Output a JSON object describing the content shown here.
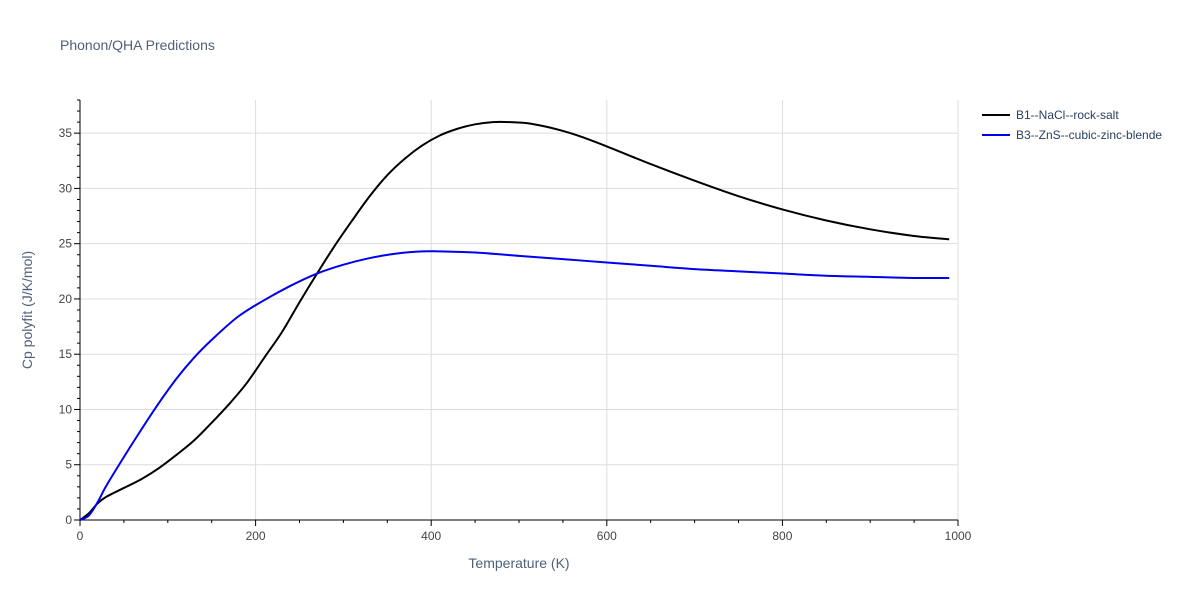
{
  "chart_data": {
    "type": "line",
    "title": "Phonon/QHA Predictions",
    "xlabel": "Temperature (K)",
    "ylabel": "Cp polyfit (J/K/mol)",
    "xlim": [
      0,
      1000
    ],
    "ylim": [
      0,
      38
    ],
    "xticks": [
      0,
      200,
      400,
      600,
      800,
      1000
    ],
    "yticks": [
      0,
      5,
      10,
      15,
      20,
      25,
      30,
      35
    ],
    "grid": true,
    "legend_position": "top-right",
    "series": [
      {
        "name": "B1--NaCl--rock-salt",
        "color": "#000000",
        "x": [
          0,
          10,
          20,
          30,
          50,
          70,
          90,
          110,
          130,
          150,
          170,
          190,
          210,
          230,
          250,
          270,
          290,
          310,
          330,
          350,
          370,
          390,
          410,
          430,
          450,
          470,
          490,
          510,
          530,
          550,
          570,
          600,
          650,
          700,
          750,
          800,
          850,
          900,
          950,
          990
        ],
        "y": [
          0,
          0.6,
          1.5,
          2.1,
          2.9,
          3.7,
          4.7,
          5.9,
          7.2,
          8.8,
          10.5,
          12.4,
          14.7,
          17.0,
          19.7,
          22.3,
          24.8,
          27.1,
          29.3,
          31.2,
          32.7,
          33.9,
          34.8,
          35.4,
          35.8,
          36.0,
          36.0,
          35.9,
          35.6,
          35.2,
          34.7,
          33.8,
          32.2,
          30.7,
          29.3,
          28.1,
          27.1,
          26.3,
          25.7,
          25.4
        ]
      },
      {
        "name": "B3--ZnS--cubic-zinc-blende",
        "color": "#0000ee",
        "x": [
          0,
          10,
          20,
          30,
          50,
          70,
          90,
          110,
          130,
          150,
          180,
          210,
          240,
          270,
          300,
          330,
          360,
          390,
          410,
          450,
          500,
          550,
          600,
          650,
          700,
          750,
          800,
          850,
          900,
          950,
          990
        ],
        "y": [
          0,
          0.4,
          1.6,
          3.1,
          5.7,
          8.2,
          10.6,
          12.8,
          14.7,
          16.3,
          18.4,
          19.9,
          21.2,
          22.3,
          23.1,
          23.7,
          24.1,
          24.3,
          24.3,
          24.2,
          23.9,
          23.6,
          23.3,
          23.0,
          22.7,
          22.5,
          22.3,
          22.1,
          22.0,
          21.9,
          21.9
        ]
      }
    ]
  }
}
